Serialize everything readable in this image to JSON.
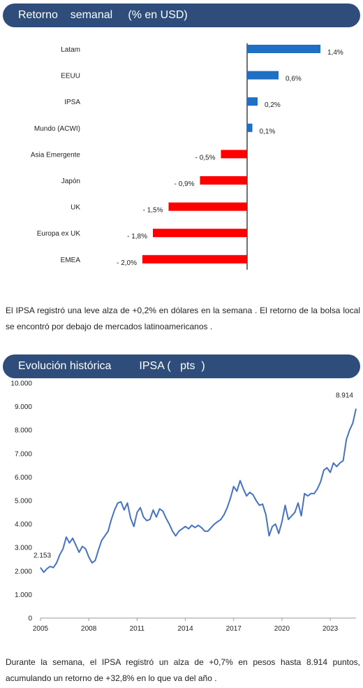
{
  "section1": {
    "title": "Retorno    semanal     (% en USD)",
    "paragraph": "El IPSA registró   una  leve  alza  de  +0,2% en dólares    en  la semana   . El retorno   de  la bolsa  local  se encontró   por debajo   de mercados    latinoamericanos      ."
  },
  "section2": {
    "title": "Evolución histórica         IPSA (   pts  )",
    "paragraph": "Durante    la semana,    el IPSA registró   un alza   de  +0,7% en  pesos   hasta    8.914 puntos,  acumulando     un retorno   de +32,8% en lo que  va del año ."
  },
  "colors": {
    "banner": "#2e4d7b",
    "positive": "#1f6fc5",
    "negative": "#ff0000",
    "line": "#4472c4"
  },
  "chart_data": [
    {
      "type": "bar",
      "orientation": "horizontal",
      "title": "Retorno semanal (% en USD)",
      "categories": [
        "Latam",
        "EEUU",
        "IPSA",
        "Mundo (ACWI)",
        "Asia Emergente",
        "Japón",
        "UK",
        "Europa ex UK",
        "EMEA"
      ],
      "values": [
        1.4,
        0.6,
        0.2,
        0.1,
        -0.5,
        -0.9,
        -1.5,
        -1.8,
        -2.0
      ],
      "labels": [
        "1,4%",
        "0,6%",
        "0,2%",
        "0,1%",
        "- 0,5%",
        "- 0,9%",
        "- 1,5%",
        "- 1,8%",
        "- 2,0%"
      ],
      "grid": false
    },
    {
      "type": "line",
      "title": "Evolución histórica IPSA (pts)",
      "ylim": [
        0,
        10000
      ],
      "yticks": [
        0,
        1000,
        2000,
        3000,
        4000,
        5000,
        6000,
        7000,
        8000,
        9000,
        10000
      ],
      "ytick_labels": [
        "0",
        "1.000",
        "2.000",
        "3.000",
        "4.000",
        "5.000",
        "6.000",
        "7.000",
        "8.000",
        "9.000",
        "10.000"
      ],
      "xlim": [
        2005,
        2024.6
      ],
      "xticks": [
        2005,
        2008,
        2011,
        2014,
        2017,
        2020,
        2023
      ],
      "xtick_labels": [
        "2005",
        "2008",
        "2011",
        "2014",
        "2017",
        "2020",
        "2023"
      ],
      "annotations": [
        {
          "text": "2.153",
          "x": 2005.0,
          "y": 2153
        },
        {
          "text": "8.914",
          "x": 2024.6,
          "y": 8914
        }
      ],
      "grid": false,
      "x": [
        2005.0,
        2005.2,
        2005.4,
        2005.6,
        2005.8,
        2006.0,
        2006.2,
        2006.4,
        2006.6,
        2006.8,
        2007.0,
        2007.2,
        2007.4,
        2007.6,
        2007.8,
        2008.0,
        2008.2,
        2008.4,
        2008.6,
        2008.8,
        2009.0,
        2009.2,
        2009.4,
        2009.6,
        2009.8,
        2010.0,
        2010.2,
        2010.4,
        2010.6,
        2010.8,
        2011.0,
        2011.2,
        2011.4,
        2011.6,
        2011.8,
        2012.0,
        2012.2,
        2012.4,
        2012.6,
        2012.8,
        2013.0,
        2013.2,
        2013.4,
        2013.6,
        2013.8,
        2014.0,
        2014.2,
        2014.4,
        2014.6,
        2014.8,
        2015.0,
        2015.2,
        2015.4,
        2015.6,
        2015.8,
        2016.0,
        2016.2,
        2016.4,
        2016.6,
        2016.8,
        2017.0,
        2017.2,
        2017.4,
        2017.6,
        2017.8,
        2018.0,
        2018.2,
        2018.4,
        2018.6,
        2018.8,
        2019.0,
        2019.2,
        2019.4,
        2019.6,
        2019.8,
        2020.0,
        2020.2,
        2020.4,
        2020.6,
        2020.8,
        2021.0,
        2021.2,
        2021.4,
        2021.6,
        2021.8,
        2022.0,
        2022.2,
        2022.4,
        2022.6,
        2022.8,
        2023.0,
        2023.2,
        2023.4,
        2023.6,
        2023.8,
        2024.0,
        2024.2,
        2024.4,
        2024.6
      ],
      "y": [
        2153,
        1950,
        2100,
        2200,
        2150,
        2350,
        2700,
        2950,
        3450,
        3200,
        3400,
        3100,
        2800,
        3050,
        2950,
        2600,
        2350,
        2450,
        2900,
        3300,
        3500,
        3700,
        4200,
        4600,
        4900,
        4950,
        4600,
        4900,
        4250,
        3900,
        4500,
        4700,
        4300,
        4150,
        4200,
        4600,
        4300,
        4650,
        4550,
        4250,
        4000,
        3700,
        3500,
        3700,
        3800,
        3900,
        3800,
        3950,
        3850,
        3950,
        3850,
        3700,
        3700,
        3850,
        4000,
        4100,
        4200,
        4400,
        4700,
        5100,
        5600,
        5400,
        5850,
        5500,
        5200,
        5350,
        5250,
        5000,
        4800,
        4850,
        4400,
        3500,
        3900,
        4000,
        3600,
        4100,
        4800,
        4200,
        4350,
        4500,
        4900,
        4350,
        5300,
        5200,
        5300,
        5300,
        5500,
        5800,
        6300,
        6400,
        6200,
        6600,
        6450,
        6600,
        6700,
        7600,
        8000,
        8300,
        8914
      ]
    }
  ]
}
